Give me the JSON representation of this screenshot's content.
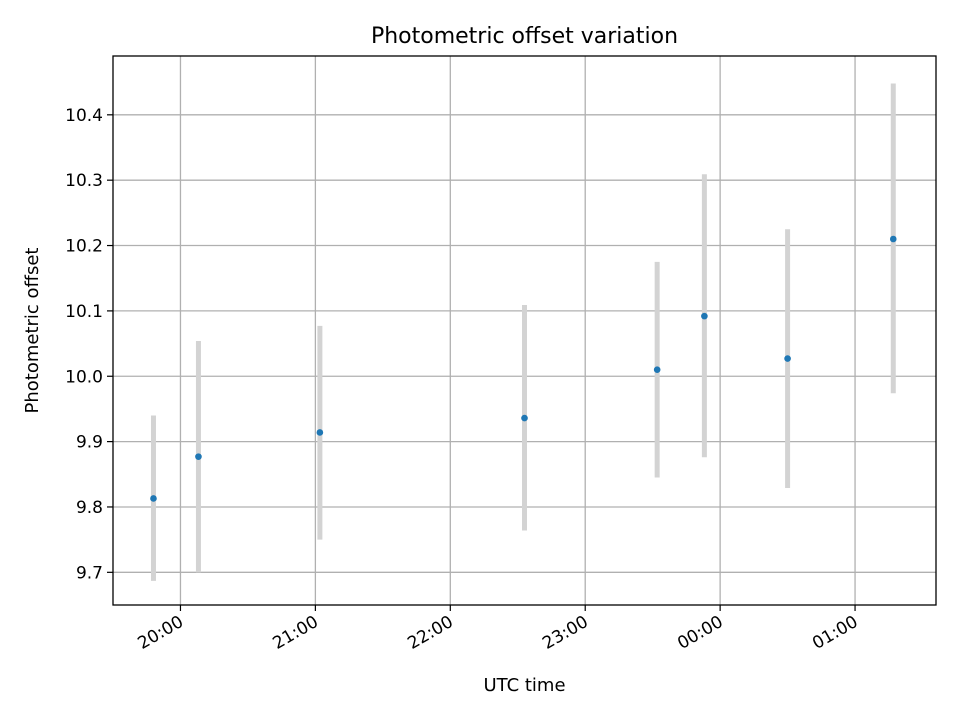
{
  "chart_data": {
    "type": "scatter",
    "title": "Photometric offset variation",
    "xlabel": "UTC time",
    "ylabel": "Photometric offset",
    "x_is_time": true,
    "xlim": [
      "19:30",
      "01:36"
    ],
    "ylim": [
      9.65,
      10.49
    ],
    "x_ticks": [
      "20:00",
      "21:00",
      "22:00",
      "23:00",
      "00:00",
      "01:00"
    ],
    "y_ticks": [
      "9.7",
      "9.8",
      "9.9",
      "10.0",
      "10.1",
      "10.2",
      "10.3",
      "10.4"
    ],
    "grid": true,
    "points": [
      {
        "time": "19:48",
        "value": 9.813,
        "err_low": 9.687,
        "err_high": 9.94
      },
      {
        "time": "20:08",
        "value": 9.877,
        "err_low": 9.7,
        "err_high": 10.054
      },
      {
        "time": "21:02",
        "value": 9.914,
        "err_low": 9.75,
        "err_high": 10.077
      },
      {
        "time": "22:33",
        "value": 9.936,
        "err_low": 9.764,
        "err_high": 10.109
      },
      {
        "time": "23:32",
        "value": 10.01,
        "err_low": 9.845,
        "err_high": 10.175
      },
      {
        "time": "23:53",
        "value": 10.092,
        "err_low": 9.876,
        "err_high": 10.309
      },
      {
        "time": "00:30",
        "value": 10.027,
        "err_low": 9.829,
        "err_high": 10.225
      },
      {
        "time": "01:17",
        "value": 10.21,
        "err_low": 9.974,
        "err_high": 10.448
      }
    ],
    "colors": {
      "point": "#1f77b4",
      "errorbar": "#d3d3d3",
      "grid": "#b0b0b0",
      "axis": "#000000"
    }
  }
}
